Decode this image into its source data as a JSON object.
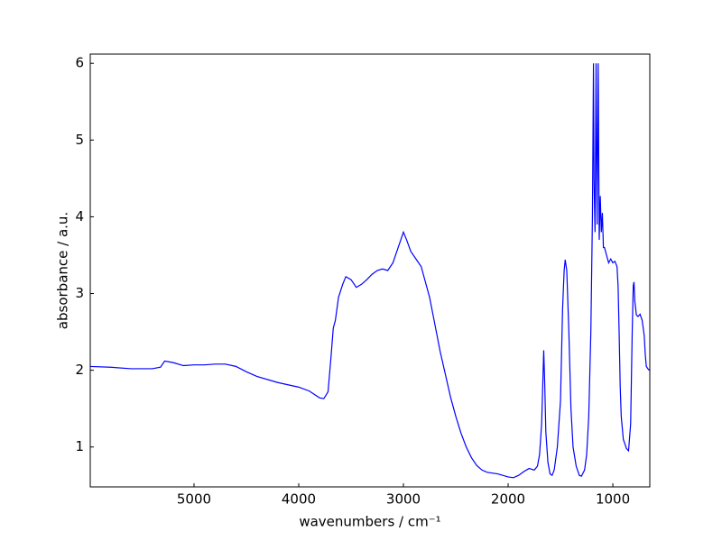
{
  "chart_data": {
    "type": "line",
    "xlabel": "wavenumbers / cm⁻¹",
    "ylabel": "absorbance / a.u.",
    "xlim": [
      5991,
      647
    ],
    "ylim": [
      0.48,
      6.12
    ],
    "xticks": [
      5000,
      4000,
      3000,
      2000,
      1000
    ],
    "yticks": [
      1,
      2,
      3,
      4,
      5,
      6
    ],
    "color": "#0000ff",
    "x": [
      6000,
      5800,
      5600,
      5400,
      5320,
      5280,
      5200,
      5100,
      5000,
      4900,
      4800,
      4700,
      4600,
      4500,
      4400,
      4200,
      4000,
      3900,
      3800,
      3760,
      3720,
      3690,
      3670,
      3650,
      3620,
      3580,
      3550,
      3500,
      3450,
      3400,
      3350,
      3300,
      3250,
      3200,
      3150,
      3100,
      3050,
      3000,
      2970,
      2930,
      2880,
      2830,
      2800,
      2750,
      2700,
      2650,
      2600,
      2550,
      2500,
      2450,
      2400,
      2350,
      2300,
      2250,
      2200,
      2100,
      2000,
      1950,
      1900,
      1850,
      1800,
      1750,
      1720,
      1700,
      1680,
      1660,
      1650,
      1640,
      1620,
      1600,
      1580,
      1560,
      1530,
      1500,
      1480,
      1465,
      1455,
      1440,
      1420,
      1400,
      1380,
      1350,
      1320,
      1300,
      1270,
      1250,
      1230,
      1210,
      1195,
      1185,
      1180,
      1170,
      1160,
      1155,
      1150,
      1140,
      1130,
      1120,
      1110,
      1100,
      1090,
      1080,
      1060,
      1040,
      1020,
      1000,
      980,
      960,
      950,
      940,
      930,
      920,
      900,
      870,
      850,
      830,
      815,
      805,
      798,
      790,
      775,
      760,
      740,
      720,
      700,
      690,
      680,
      660,
      650
    ],
    "values": [
      2.05,
      2.04,
      2.02,
      2.02,
      2.04,
      2.12,
      2.1,
      2.06,
      2.07,
      2.07,
      2.08,
      2.08,
      2.05,
      1.98,
      1.92,
      1.84,
      1.78,
      1.73,
      1.64,
      1.63,
      1.72,
      2.2,
      2.55,
      2.65,
      2.95,
      3.12,
      3.22,
      3.18,
      3.08,
      3.12,
      3.18,
      3.25,
      3.3,
      3.32,
      3.3,
      3.4,
      3.6,
      3.8,
      3.7,
      3.55,
      3.45,
      3.35,
      3.2,
      2.95,
      2.6,
      2.25,
      1.95,
      1.65,
      1.4,
      1.18,
      1.0,
      0.86,
      0.76,
      0.7,
      0.67,
      0.65,
      0.61,
      0.6,
      0.63,
      0.68,
      0.72,
      0.7,
      0.75,
      0.9,
      1.3,
      2.26,
      1.8,
      1.2,
      0.8,
      0.65,
      0.63,
      0.7,
      1.0,
      1.6,
      2.8,
      3.3,
      3.44,
      3.3,
      2.5,
      1.5,
      1.0,
      0.75,
      0.63,
      0.62,
      0.7,
      0.9,
      1.4,
      2.5,
      4.0,
      6.0,
      4.5,
      3.8,
      6.0,
      4.8,
      3.9,
      6.0,
      3.7,
      4.27,
      3.8,
      4.05,
      3.6,
      3.6,
      3.5,
      3.4,
      3.45,
      3.4,
      3.42,
      3.35,
      3.1,
      2.5,
      1.8,
      1.4,
      1.1,
      0.98,
      0.95,
      1.3,
      2.5,
      3.1,
      3.15,
      2.9,
      2.72,
      2.7,
      2.73,
      2.65,
      2.45,
      2.2,
      2.05,
      2.01,
      2.0
    ]
  }
}
